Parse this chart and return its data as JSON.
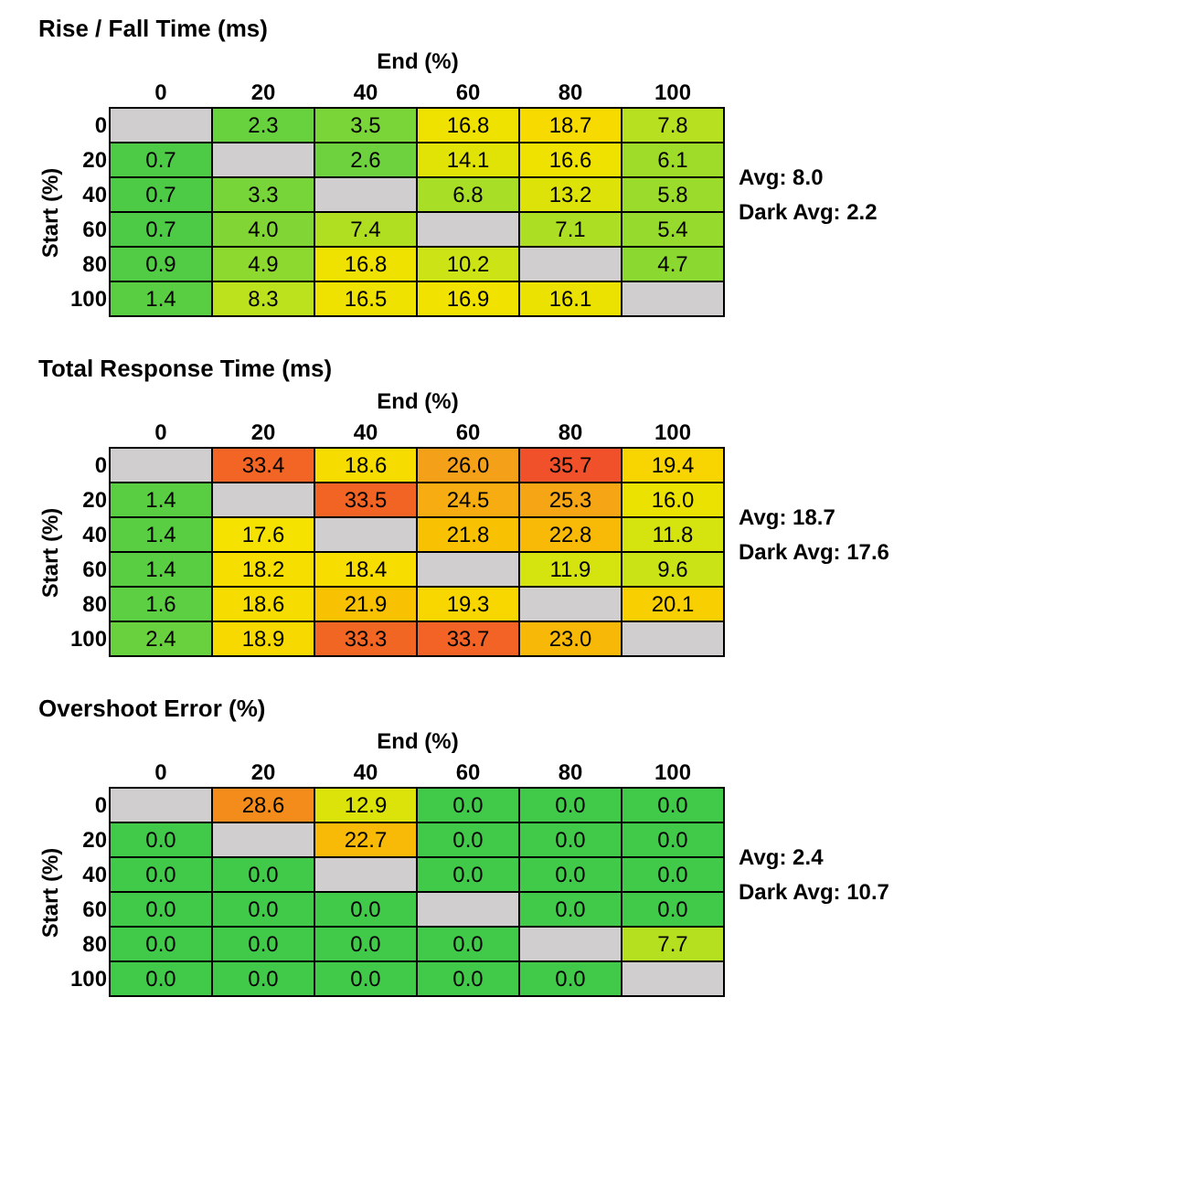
{
  "chart_data": [
    {
      "type": "heatmap",
      "title": "Rise / Fall Time (ms)",
      "xlabel": "End (%)",
      "ylabel": "Start (%)",
      "categories": [
        "0",
        "20",
        "40",
        "60",
        "80",
        "100"
      ],
      "y_categories": [
        "0",
        "20",
        "40",
        "60",
        "80",
        "100"
      ],
      "cells": [
        [
          null,
          2.3,
          3.5,
          16.8,
          18.7,
          7.8
        ],
        [
          0.7,
          null,
          2.6,
          14.1,
          16.6,
          6.1
        ],
        [
          0.7,
          3.3,
          null,
          6.8,
          13.2,
          5.8
        ],
        [
          0.7,
          4.0,
          7.4,
          null,
          7.1,
          5.4
        ],
        [
          0.9,
          4.9,
          16.8,
          10.2,
          null,
          4.7
        ],
        [
          1.4,
          8.3,
          16.5,
          16.9,
          16.1,
          null
        ]
      ],
      "cell_labels": [
        [
          null,
          "2.3",
          "3.5",
          "16.8",
          "18.7",
          "7.8"
        ],
        [
          "0.7",
          null,
          "2.6",
          "14.1",
          "16.6",
          "6.1"
        ],
        [
          "0.7",
          "3.3",
          null,
          "6.8",
          "13.2",
          "5.8"
        ],
        [
          "0.7",
          "4.0",
          "7.4",
          null,
          "7.1",
          "5.4"
        ],
        [
          "0.9",
          "4.9",
          "16.8",
          "10.2",
          null,
          "4.7"
        ],
        [
          "1.4",
          "8.3",
          "16.5",
          "16.9",
          "16.1",
          null
        ]
      ],
      "data_labels": true,
      "colors": [
        "#41c94a",
        "#c5e31a",
        "#f6e200",
        "#f39a1c",
        "#f0502a"
      ],
      "annotations": [
        "Avg: 8.0",
        "Dark Avg: 2.2"
      ]
    },
    {
      "type": "heatmap",
      "title": "Total Response Time (ms)",
      "xlabel": "End (%)",
      "ylabel": "Start (%)",
      "categories": [
        "0",
        "20",
        "40",
        "60",
        "80",
        "100"
      ],
      "y_categories": [
        "0",
        "20",
        "40",
        "60",
        "80",
        "100"
      ],
      "cells": [
        [
          null,
          33.4,
          18.6,
          26.0,
          35.7,
          19.4
        ],
        [
          1.4,
          null,
          33.5,
          24.5,
          25.3,
          16.0
        ],
        [
          1.4,
          17.6,
          null,
          21.8,
          22.8,
          11.8
        ],
        [
          1.4,
          18.2,
          18.4,
          null,
          11.9,
          9.6
        ],
        [
          1.6,
          18.6,
          21.9,
          19.3,
          null,
          20.1
        ],
        [
          2.4,
          18.9,
          33.3,
          33.7,
          23.0,
          null
        ]
      ],
      "cell_labels": [
        [
          null,
          "33.4",
          "18.6",
          "26.0",
          "35.7",
          "19.4"
        ],
        [
          "1.4",
          null,
          "33.5",
          "24.5",
          "25.3",
          "16.0"
        ],
        [
          "1.4",
          "17.6",
          null,
          "21.8",
          "22.8",
          "11.8"
        ],
        [
          "1.4",
          "18.2",
          "18.4",
          null,
          "11.9",
          "9.6"
        ],
        [
          "1.6",
          "18.6",
          "21.9",
          "19.3",
          null,
          "20.1"
        ],
        [
          "2.4",
          "18.9",
          "33.3",
          "33.7",
          "23.0",
          null
        ]
      ],
      "data_labels": true,
      "colors": [
        "#41c94a",
        "#c5e31a",
        "#f4c811",
        "#f39a1c",
        "#f0502a"
      ],
      "annotations": [
        "Avg: 18.7",
        "Dark Avg: 17.6"
      ]
    },
    {
      "type": "heatmap",
      "title": "Overshoot Error (%)",
      "xlabel": "End (%)",
      "ylabel": "Start (%)",
      "categories": [
        "0",
        "20",
        "40",
        "60",
        "80",
        "100"
      ],
      "y_categories": [
        "0",
        "20",
        "40",
        "60",
        "80",
        "100"
      ],
      "cells": [
        [
          null,
          28.6,
          12.9,
          0.0,
          0.0,
          0.0
        ],
        [
          0.0,
          null,
          22.7,
          0.0,
          0.0,
          0.0
        ],
        [
          0.0,
          0.0,
          null,
          0.0,
          0.0,
          0.0
        ],
        [
          0.0,
          0.0,
          0.0,
          null,
          0.0,
          0.0
        ],
        [
          0.0,
          0.0,
          0.0,
          0.0,
          null,
          7.7
        ],
        [
          0.0,
          0.0,
          0.0,
          0.0,
          0.0,
          null
        ]
      ],
      "cell_labels": [
        [
          null,
          "28.6",
          "12.9",
          "0.0",
          "0.0",
          "0.0"
        ],
        [
          "0.0",
          null,
          "22.7",
          "0.0",
          "0.0",
          "0.0"
        ],
        [
          "0.0",
          "0.0",
          null,
          "0.0",
          "0.0",
          "0.0"
        ],
        [
          "0.0",
          "0.0",
          "0.0",
          null,
          "0.0",
          "0.0"
        ],
        [
          "0.0",
          "0.0",
          "0.0",
          "0.0",
          null,
          "7.7"
        ],
        [
          "0.0",
          "0.0",
          "0.0",
          "0.0",
          "0.0",
          null
        ]
      ],
      "data_labels": true,
      "colors": [
        "#41c94a",
        "#c5e31a",
        "#f4c811",
        "#f39a1c",
        "#f0502a"
      ],
      "annotations": [
        "Avg: 2.4",
        "Dark Avg: 10.7"
      ]
    }
  ]
}
